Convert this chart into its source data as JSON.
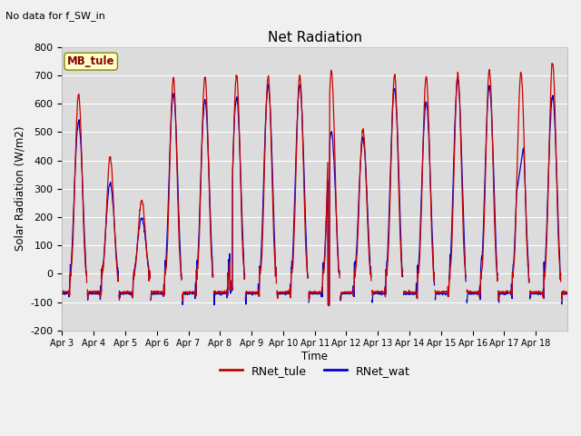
{
  "title": "Net Radiation",
  "subtitle": "No data for f_SW_in",
  "ylabel": "Solar Radiation (W/m2)",
  "xlabel": "Time",
  "ylim": [
    -200,
    800
  ],
  "yticks": [
    -200,
    -100,
    0,
    100,
    200,
    300,
    400,
    500,
    600,
    700,
    800
  ],
  "xtick_labels": [
    "Apr 3",
    "Apr 4",
    "Apr 5",
    "Apr 6",
    "Apr 7",
    "Apr 8",
    "Apr 9",
    "Apr 10",
    "Apr 11",
    "Apr 12",
    "Apr 13",
    "Apr 14",
    "Apr 15",
    "Apr 16",
    "Apr 17",
    "Apr 18"
  ],
  "color_tule": "#cc0000",
  "color_wat": "#0000cc",
  "legend_label_tule": "RNet_tule",
  "legend_label_wat": "RNet_wat",
  "station_label": "MB_tule",
  "plot_bg_color": "#dcdcdc",
  "fig_bg_color": "#f0f0f0",
  "grid_color": "white",
  "n_days": 16,
  "pts_per_day": 96
}
